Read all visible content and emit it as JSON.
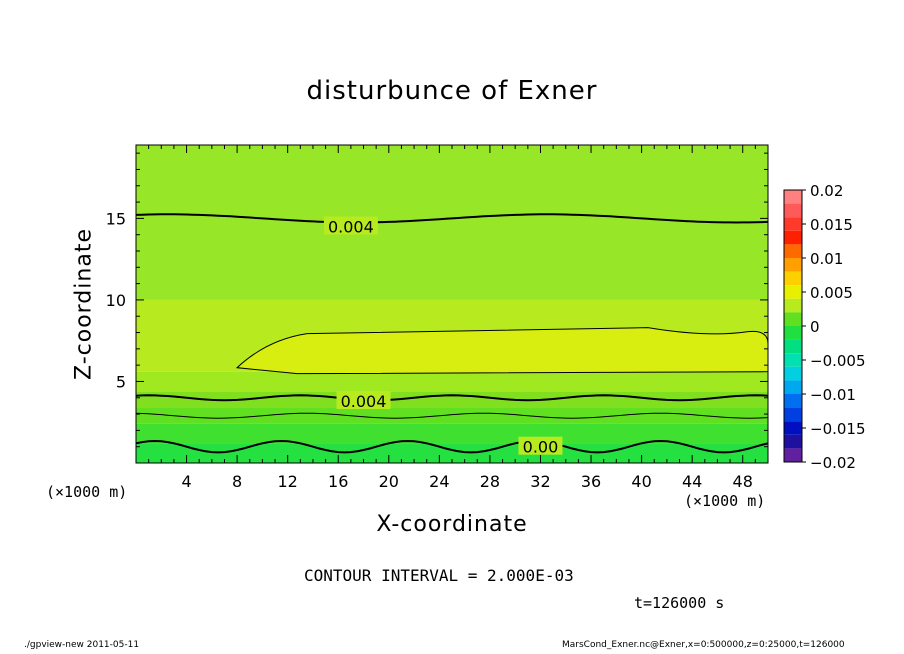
{
  "chart_data": {
    "type": "heatmap",
    "title": "disturbunce of Exner",
    "xlabel": "X-coordinate",
    "ylabel": "Z-coordinate",
    "x_unit": "(×1000 m)",
    "xlim": [
      0,
      50
    ],
    "ylim": [
      0,
      19.5
    ],
    "x_ticks": [
      4,
      8,
      12,
      16,
      20,
      24,
      28,
      32,
      36,
      40,
      44,
      48
    ],
    "y_ticks": [
      5,
      10,
      15
    ],
    "contour_interval_text": "CONTOUR INTERVAL = 2.000E-03",
    "time_text": "t=126000 s",
    "contour_labels": [
      {
        "text": "0.004",
        "x": 17,
        "z": 14.5
      },
      {
        "text": "0.004",
        "x": 18,
        "z": 3.8
      },
      {
        "text": "0.00",
        "x": 32,
        "z": 1.0
      }
    ],
    "colorbar": {
      "ticks": [
        "0.02",
        "0.015",
        "0.01",
        "0.005",
        "0",
        "−0.005",
        "−0.01",
        "−0.015",
        "−0.02"
      ],
      "levels": [
        {
          "from": 0.018,
          "to": 0.02,
          "color": "#ff8080"
        },
        {
          "from": 0.016,
          "to": 0.018,
          "color": "#ff5a5a"
        },
        {
          "from": 0.014,
          "to": 0.016,
          "color": "#ff3a2a"
        },
        {
          "from": 0.012,
          "to": 0.014,
          "color": "#ff2000"
        },
        {
          "from": 0.01,
          "to": 0.012,
          "color": "#ff6a00"
        },
        {
          "from": 0.008,
          "to": 0.01,
          "color": "#ffa000"
        },
        {
          "from": 0.006,
          "to": 0.008,
          "color": "#ffd000"
        },
        {
          "from": 0.004,
          "to": 0.006,
          "color": "#e8f000"
        },
        {
          "from": 0.002,
          "to": 0.004,
          "color": "#b8ea20"
        },
        {
          "from": 0.0,
          "to": 0.002,
          "color": "#60e020"
        },
        {
          "from": -0.002,
          "to": 0.0,
          "color": "#20e040"
        },
        {
          "from": -0.004,
          "to": -0.002,
          "color": "#00e080"
        },
        {
          "from": -0.006,
          "to": -0.004,
          "color": "#00e0b0"
        },
        {
          "from": -0.008,
          "to": -0.006,
          "color": "#00d0e0"
        },
        {
          "from": -0.01,
          "to": -0.008,
          "color": "#00a8f0"
        },
        {
          "from": -0.012,
          "to": -0.01,
          "color": "#0070f0"
        },
        {
          "from": -0.014,
          "to": -0.012,
          "color": "#0040e0"
        },
        {
          "from": -0.016,
          "to": -0.014,
          "color": "#0010c0"
        },
        {
          "from": -0.018,
          "to": -0.016,
          "color": "#2010a0"
        },
        {
          "from": -0.02,
          "to": -0.018,
          "color": "#6020a0"
        }
      ]
    },
    "field_bands": [
      {
        "z_from": 0.0,
        "z_to": 1.2,
        "color": "#24e040"
      },
      {
        "z_from": 1.2,
        "z_to": 2.4,
        "color": "#40e030"
      },
      {
        "z_from": 2.4,
        "z_to": 3.4,
        "color": "#60e020"
      },
      {
        "z_from": 3.4,
        "z_to": 4.4,
        "color": "#80e020"
      },
      {
        "z_from": 4.4,
        "z_to": 5.6,
        "color": "#a0e820"
      },
      {
        "z_from": 5.6,
        "z_to": 10.0,
        "color": "#b8ea20"
      },
      {
        "z_from": 10.0,
        "z_to": 19.5,
        "color": "#98e628"
      }
    ],
    "core_region": {
      "x_from": 8,
      "x_to": 50,
      "z_from": 5.6,
      "z_to": 8.3,
      "color": "#d8ee10"
    }
  },
  "footer": {
    "left": "./gpview-new   2011-05-11",
    "right": "MarsCond_Exner.nc@Exner,x=0:500000,z=0:25000,t=126000"
  }
}
